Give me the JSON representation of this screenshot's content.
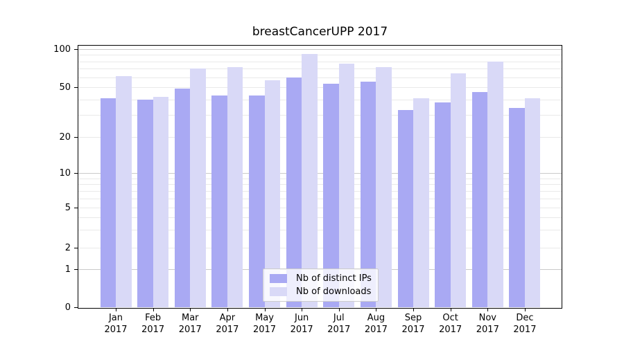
{
  "chart_data": {
    "type": "bar",
    "title": "breastCancerUPP 2017",
    "categories": [
      "Jan",
      "Feb",
      "Mar",
      "Apr",
      "May",
      "Jun",
      "Jul",
      "Aug",
      "Sep",
      "Oct",
      "Nov",
      "Dec"
    ],
    "year_label": "2017",
    "series": [
      {
        "name": "Nb of distinct IPs",
        "color": "#a9a9f3",
        "values": [
          41,
          40,
          49,
          43,
          43,
          60,
          53,
          55,
          33,
          38,
          46,
          34
        ]
      },
      {
        "name": "Nb of downloads",
        "color": "#d9d9f7",
        "values": [
          61,
          42,
          70,
          72,
          57,
          92,
          77,
          72,
          41,
          64,
          80,
          41
        ]
      }
    ],
    "xlabel": "",
    "ylabel": "",
    "yscale": "symlog",
    "ylim": [
      0,
      110
    ],
    "y_ticks": [
      100,
      50,
      20,
      10,
      5,
      2,
      1,
      0
    ],
    "grid": true,
    "legend_position": "lower center"
  }
}
